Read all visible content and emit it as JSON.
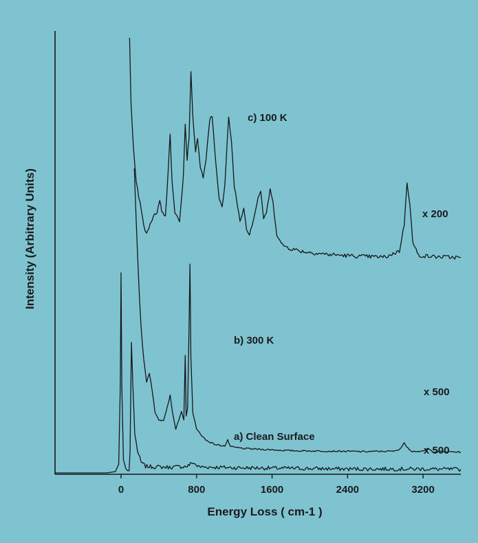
{
  "colors": {
    "background": "#7fc3d1",
    "ink": "#161616"
  },
  "chart_data": {
    "type": "line",
    "title": "",
    "xlabel": "Energy Loss ( cm-1 )",
    "ylabel": "Intensity (Arbitrary Units)",
    "xlim": [
      -700,
      3600
    ],
    "ylim": [
      0,
      100
    ],
    "x_ticks": [
      0,
      800,
      1600,
      2400,
      3200
    ],
    "x_tick_labels": [
      "0",
      "800",
      "1600",
      "2400",
      "3200"
    ],
    "grid": false,
    "legend": "none",
    "series": [
      {
        "name": "a)  Clean Surface",
        "scale_label": "x 500",
        "points": [
          [
            -700,
            0
          ],
          [
            -150,
            0
          ],
          [
            -60,
            0.3
          ],
          [
            -25,
            2
          ],
          [
            -8,
            20
          ],
          [
            0,
            46
          ],
          [
            8,
            20
          ],
          [
            25,
            3
          ],
          [
            50,
            1
          ],
          [
            70,
            0.5
          ],
          [
            85,
            0.5
          ],
          [
            95,
            5
          ],
          [
            110,
            30
          ],
          [
            125,
            20
          ],
          [
            145,
            9
          ],
          [
            175,
            5
          ],
          [
            210,
            2.5
          ],
          [
            260,
            1.5
          ],
          [
            350,
            1.4
          ],
          [
            500,
            1.3
          ],
          [
            700,
            1.5
          ],
          [
            760,
            2.4
          ],
          [
            820,
            1.4
          ],
          [
            1000,
            1.3
          ],
          [
            1200,
            1.2
          ],
          [
            1600,
            1.1
          ],
          [
            2000,
            1.0
          ],
          [
            2400,
            0.9
          ],
          [
            2800,
            0.9
          ],
          [
            3200,
            0.9
          ],
          [
            3600,
            0.8
          ]
        ]
      },
      {
        "name": "b) 300 K",
        "scale_label": "x 500",
        "points": [
          [
            140,
            70
          ],
          [
            160,
            58
          ],
          [
            185,
            45
          ],
          [
            210,
            34
          ],
          [
            240,
            26
          ],
          [
            270,
            21
          ],
          [
            300,
            23
          ],
          [
            330,
            19
          ],
          [
            360,
            14
          ],
          [
            400,
            12
          ],
          [
            450,
            12
          ],
          [
            500,
            16
          ],
          [
            520,
            18
          ],
          [
            545,
            14
          ],
          [
            580,
            10
          ],
          [
            610,
            12
          ],
          [
            640,
            14
          ],
          [
            665,
            12
          ],
          [
            680,
            27
          ],
          [
            690,
            13
          ],
          [
            705,
            15
          ],
          [
            720,
            33
          ],
          [
            730,
            48
          ],
          [
            740,
            26
          ],
          [
            760,
            14
          ],
          [
            800,
            10
          ],
          [
            900,
            7.5
          ],
          [
            1000,
            6.5
          ],
          [
            1100,
            6.2
          ],
          [
            1130,
            7.5
          ],
          [
            1160,
            6
          ],
          [
            1300,
            5.6
          ],
          [
            1500,
            5.4
          ],
          [
            1800,
            5.1
          ],
          [
            2200,
            5.0
          ],
          [
            2600,
            4.9
          ],
          [
            2900,
            5.0
          ],
          [
            2960,
            5.6
          ],
          [
            3000,
            6.8
          ],
          [
            3040,
            5.8
          ],
          [
            3080,
            5.0
          ],
          [
            3200,
            4.9
          ],
          [
            3250,
            5.6
          ],
          [
            3300,
            4.9
          ],
          [
            3600,
            4.8
          ]
        ]
      },
      {
        "name": "c) 100 K",
        "scale_label": "x 200",
        "points": [
          [
            90,
            100
          ],
          [
            105,
            85
          ],
          [
            130,
            75
          ],
          [
            160,
            67
          ],
          [
            200,
            62
          ],
          [
            240,
            57
          ],
          [
            270,
            55
          ],
          [
            320,
            58
          ],
          [
            380,
            60
          ],
          [
            410,
            63
          ],
          [
            430,
            60
          ],
          [
            470,
            59
          ],
          [
            500,
            70
          ],
          [
            520,
            78
          ],
          [
            540,
            67
          ],
          [
            570,
            60
          ],
          [
            620,
            58
          ],
          [
            660,
            68
          ],
          [
            680,
            80
          ],
          [
            700,
            72
          ],
          [
            720,
            77
          ],
          [
            740,
            92
          ],
          [
            760,
            82
          ],
          [
            790,
            74
          ],
          [
            810,
            77
          ],
          [
            840,
            70
          ],
          [
            870,
            68
          ],
          [
            900,
            72
          ],
          [
            940,
            81
          ],
          [
            965,
            82
          ],
          [
            990,
            75
          ],
          [
            1040,
            63
          ],
          [
            1070,
            61
          ],
          [
            1100,
            66
          ],
          [
            1140,
            82
          ],
          [
            1170,
            76
          ],
          [
            1200,
            66
          ],
          [
            1260,
            58
          ],
          [
            1300,
            61
          ],
          [
            1330,
            56
          ],
          [
            1360,
            55
          ],
          [
            1400,
            58
          ],
          [
            1450,
            63
          ],
          [
            1480,
            65
          ],
          [
            1510,
            58
          ],
          [
            1540,
            60
          ],
          [
            1580,
            65
          ],
          [
            1610,
            62
          ],
          [
            1650,
            55
          ],
          [
            1700,
            52.5
          ],
          [
            1800,
            51.5
          ],
          [
            1950,
            50.8
          ],
          [
            2200,
            50.2
          ],
          [
            2500,
            49.8
          ],
          [
            2800,
            49.6
          ],
          [
            2950,
            51
          ],
          [
            3000,
            57
          ],
          [
            3030,
            67
          ],
          [
            3060,
            62
          ],
          [
            3090,
            53
          ],
          [
            3150,
            50
          ],
          [
            3300,
            49.7
          ],
          [
            3600,
            49.5
          ]
        ]
      }
    ]
  }
}
